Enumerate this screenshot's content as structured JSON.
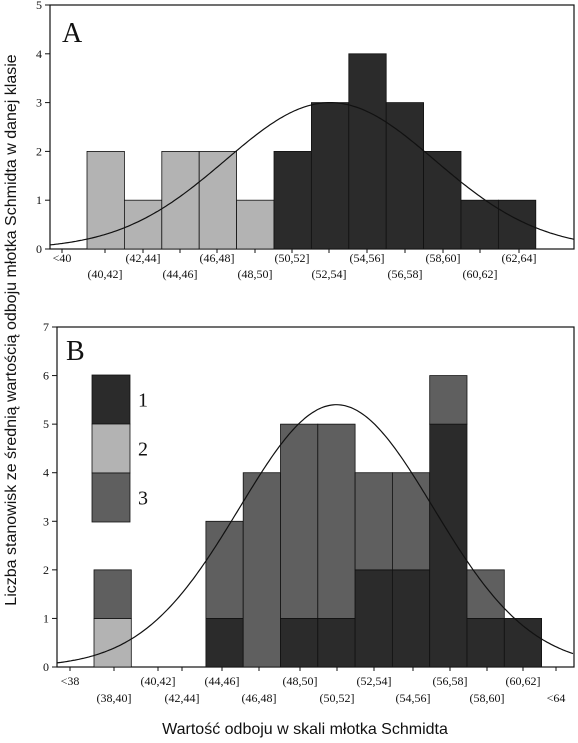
{
  "colors": {
    "dark": "#2b2b2b",
    "light": "#b3b3b3",
    "medium": "#5f5f5f"
  },
  "ylabel": "Liczba stanowisk ze średnią wartością odboju młotka Schmidta w danej klasie",
  "xlabel": "Wartość odboju w skali młotka Schmidta",
  "chart_data": [
    {
      "type": "bar",
      "panel": "A",
      "title": "A",
      "ylim": [
        0,
        5
      ],
      "yticks": [
        "0",
        "1",
        "2",
        "3",
        "4",
        "5"
      ],
      "categories": [
        "<40",
        "(40,42]",
        "(42,44]",
        "(44,46]",
        "(46,48]",
        "(48,50]",
        "(50,52]",
        "(52,54]",
        "(54,56]",
        "(56,58]",
        "(58,60]",
        "(60,62]",
        "(62,64]"
      ],
      "series": [
        {
          "color_key": "light",
          "values": [
            0,
            2,
            1,
            2,
            2,
            1,
            0,
            0,
            0,
            0,
            0,
            0,
            0
          ]
        },
        {
          "color_key": "dark",
          "values": [
            0,
            0,
            0,
            0,
            0,
            0,
            2,
            3,
            4,
            3,
            2,
            1,
            1
          ]
        }
      ],
      "curve": {
        "mu": 53,
        "sigma": 5.6,
        "peak": 3.0
      },
      "grid": false,
      "legend": "none"
    },
    {
      "type": "bar",
      "panel": "B",
      "title": "B",
      "ylim": [
        0,
        7
      ],
      "yticks": [
        "0",
        "1",
        "2",
        "3",
        "4",
        "5",
        "6",
        "7"
      ],
      "categories": [
        "<38",
        "(38,40]",
        "(40,42]",
        "(42,44]",
        "(44,46]",
        "(46,48]",
        "(48,50]",
        "(50,52]",
        "(52,54]",
        "(54,56]",
        "(56,58]",
        "(58,60]",
        "(60,62]",
        "<64"
      ],
      "series": [
        {
          "name": "1",
          "color_key": "dark",
          "values": [
            0,
            0,
            0,
            0,
            1,
            0,
            1,
            1,
            2,
            2,
            5,
            1,
            1,
            0
          ]
        },
        {
          "name": "2",
          "color_key": "light",
          "values": [
            0,
            1,
            0,
            0,
            0,
            0,
            0,
            0,
            0,
            0,
            0,
            0,
            0,
            0
          ]
        },
        {
          "name": "3",
          "color_key": "medium",
          "values": [
            0,
            1,
            0,
            0,
            2,
            4,
            4,
            4,
            2,
            2,
            1,
            1,
            0,
            0
          ]
        }
      ],
      "curve": {
        "mu": 51,
        "sigma": 5.2,
        "peak": 5.4
      },
      "grid": false,
      "legend": "top-left"
    }
  ]
}
